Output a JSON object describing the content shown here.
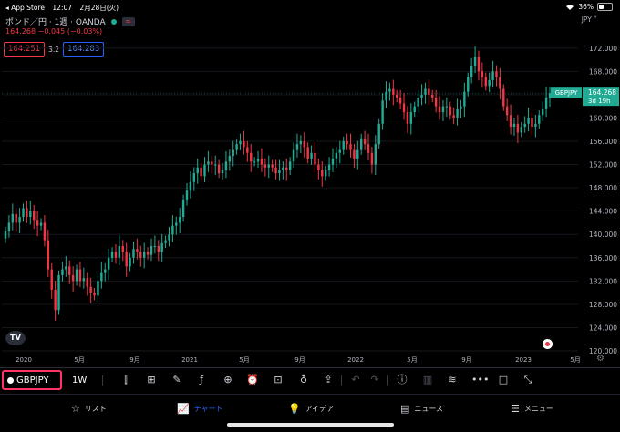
{
  "status": {
    "back_app": "◂ App Store",
    "time": "12:07",
    "date": "2月28日(火)",
    "battery": "36%",
    "battery_level": 0.36
  },
  "symbol": {
    "description": "ポンド／円 · 1週 · OANDA",
    "change": "164.268  −0.045 (−0.03%)",
    "sell_price": "164.251",
    "spread": "3.2",
    "buy_price": "164.283",
    "currency": "JPY ˅"
  },
  "colors": {
    "up": "#22ab94",
    "down": "#f23645",
    "accent": "#2962ff",
    "highlight": "#ff3366"
  },
  "chart_data": {
    "type": "candlestick",
    "y_axis_labels": [
      "172.000",
      "168.000",
      "164.000",
      "160.000",
      "156.000",
      "152.000",
      "148.000",
      "144.000",
      "140.000",
      "136.000",
      "132.000",
      "128.000",
      "124.000",
      "120.000"
    ],
    "x_axis_labels": [
      "2020",
      "5月",
      "9月",
      "2021",
      "5月",
      "9月",
      "2022",
      "5月",
      "9月",
      "2023",
      "5月"
    ],
    "ylim": [
      120,
      174
    ],
    "last_price_label": {
      "symbol": "GBPJPY",
      "price": "164.268",
      "countdown": "3d 19h"
    },
    "closes": [
      140.5,
      142.0,
      143.5,
      142.0,
      143.0,
      144.5,
      143.0,
      144.0,
      142.5,
      141.5,
      142.0,
      139.0,
      134.0,
      130.5,
      127.0,
      133.0,
      134.0,
      134.5,
      133.0,
      132.0,
      134.0,
      132.0,
      132.5,
      131.0,
      130.0,
      129.5,
      132.0,
      133.5,
      134.0,
      136.0,
      137.0,
      136.0,
      138.0,
      137.0,
      134.5,
      136.0,
      137.5,
      137.0,
      136.0,
      137.0,
      136.5,
      138.0,
      138.0,
      137.0,
      138.5,
      139.0,
      140.0,
      141.5,
      142.0,
      143.0,
      146.0,
      147.5,
      149.0,
      150.5,
      151.5,
      150.0,
      152.0,
      152.5,
      152.0,
      152.0,
      150.5,
      151.0,
      152.5,
      153.5,
      154.5,
      155.5,
      156.0,
      155.0,
      154.0,
      152.5,
      152.5,
      153.0,
      152.0,
      151.5,
      152.0,
      151.5,
      150.5,
      151.0,
      151.5,
      151.0,
      152.5,
      154.5,
      155.5,
      156.0,
      155.0,
      153.0,
      154.0,
      152.0,
      151.0,
      150.0,
      151.0,
      152.0,
      153.0,
      154.0,
      154.5,
      156.0,
      155.5,
      154.5,
      153.0,
      154.5,
      156.5,
      155.5,
      154.0,
      152.0,
      155.5,
      159.0,
      163.0,
      164.5,
      165.0,
      164.0,
      163.5,
      162.5,
      161.0,
      159.0,
      161.0,
      162.0,
      163.5,
      164.0,
      165.0,
      164.0,
      163.5,
      162.0,
      161.0,
      162.0,
      162.0,
      160.5,
      160.0,
      161.5,
      162.0,
      164.5,
      167.0,
      169.0,
      170.5,
      168.0,
      167.0,
      165.5,
      166.5,
      168.0,
      167.0,
      165.0,
      162.0,
      160.5,
      158.5,
      159.0,
      157.5,
      158.5,
      159.0,
      160.0,
      158.5,
      159.0,
      160.5,
      161.5,
      163.5,
      164.268
    ]
  },
  "toolbar": {
    "symbol": "GBPJPY",
    "interval": "1W",
    "icons": [
      "candle-type-icon",
      "indicator-icon",
      "draw-icon",
      "fx-icon",
      "add-icon",
      "alert-icon",
      "layout-icon",
      "idea-icon",
      "share-icon",
      "undo-icon",
      "redo-icon",
      "info-icon",
      "bar-chart-icon",
      "compare-icon",
      "more-icon",
      "fullscreen-square-icon",
      "expand-icon"
    ]
  },
  "tabs": [
    {
      "label": "リスト",
      "icon": "☆"
    },
    {
      "label": "チャート",
      "icon": "📈"
    },
    {
      "label": "アイデア",
      "icon": "💡"
    },
    {
      "label": "ニュース",
      "icon": "▤"
    },
    {
      "label": "メニュー",
      "icon": "☰"
    }
  ]
}
